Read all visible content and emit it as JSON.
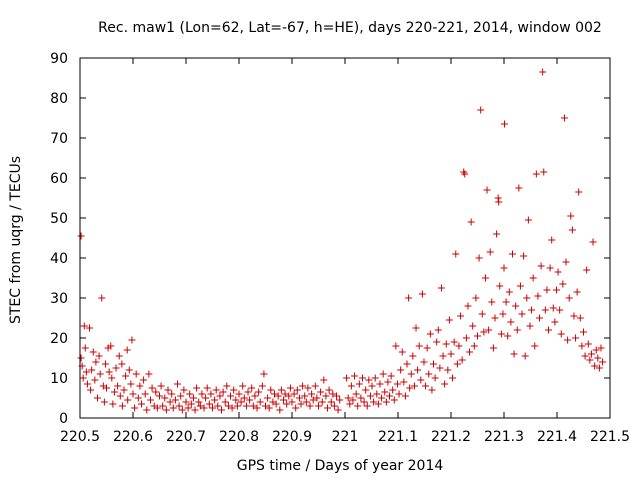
{
  "chart_data": {
    "type": "scatter",
    "title": "Rec. maw1 (Lon=62, Lat=-67, h=HE), days 220-221, 2014, window 002",
    "xlabel": "GPS time / Days of year 2014",
    "ylabel": "STEC from uqrg / TECUs",
    "xlim": [
      220.5,
      221.5
    ],
    "ylim": [
      0,
      90
    ],
    "xticks": [
      220.5,
      220.6,
      220.7,
      220.8,
      220.9,
      221,
      221.1,
      221.2,
      221.3,
      221.4,
      221.5
    ],
    "xtick_labels": [
      "220.5",
      "220.6",
      "220.7",
      "220.8",
      "220.9",
      "221",
      "221.1",
      "221.2",
      "221.3",
      "221.4",
      "221.5"
    ],
    "yticks": [
      0,
      10,
      20,
      30,
      40,
      50,
      60,
      70,
      80,
      90
    ],
    "ytick_labels": [
      "0",
      "10",
      "20",
      "30",
      "40",
      "50",
      "60",
      "70",
      "80",
      "90"
    ],
    "grid": false,
    "marker": "+",
    "color": "#cc0000",
    "points": [
      [
        220.502,
        45.5
      ],
      [
        220.502,
        15.0
      ],
      [
        220.504,
        13.0
      ],
      [
        220.506,
        10.0
      ],
      [
        220.508,
        23.0
      ],
      [
        220.51,
        17.5
      ],
      [
        220.512,
        11.5
      ],
      [
        220.514,
        8.5
      ],
      [
        220.518,
        22.5
      ],
      [
        220.52,
        7.0
      ],
      [
        220.522,
        12.0
      ],
      [
        220.525,
        16.5
      ],
      [
        220.528,
        9.5
      ],
      [
        220.53,
        14.0
      ],
      [
        220.533,
        5.0
      ],
      [
        220.536,
        15.5
      ],
      [
        220.538,
        11.0
      ],
      [
        220.541,
        30.0
      ],
      [
        220.544,
        8.0
      ],
      [
        220.546,
        4.0
      ],
      [
        220.548,
        13.5
      ],
      [
        220.55,
        7.5
      ],
      [
        220.553,
        17.5
      ],
      [
        220.555,
        11.5
      ],
      [
        220.558,
        18.0
      ],
      [
        220.56,
        10.0
      ],
      [
        220.562,
        3.5
      ],
      [
        220.565,
        6.5
      ],
      [
        220.568,
        12.5
      ],
      [
        220.571,
        8.0
      ],
      [
        220.574,
        15.5
      ],
      [
        220.576,
        5.5
      ],
      [
        220.579,
        13.5
      ],
      [
        220.58,
        3.0
      ],
      [
        220.583,
        7.0
      ],
      [
        220.586,
        10.5
      ],
      [
        220.589,
        17.0
      ],
      [
        220.59,
        4.5
      ],
      [
        220.593,
        12.0
      ],
      [
        220.596,
        8.5
      ],
      [
        220.598,
        19.5
      ],
      [
        220.6,
        6.0
      ],
      [
        220.603,
        2.5
      ],
      [
        220.606,
        11.0
      ],
      [
        220.61,
        5.0
      ],
      [
        220.613,
        8.0
      ],
      [
        220.616,
        3.5
      ],
      [
        220.62,
        9.5
      ],
      [
        220.623,
        6.0
      ],
      [
        220.626,
        2.0
      ],
      [
        220.63,
        11.0
      ],
      [
        220.633,
        4.5
      ],
      [
        220.636,
        7.5
      ],
      [
        220.64,
        3.0
      ],
      [
        220.643,
        6.5
      ],
      [
        220.646,
        2.5
      ],
      [
        220.65,
        5.5
      ],
      [
        220.653,
        8.0
      ],
      [
        220.656,
        3.0
      ],
      [
        220.66,
        5.0
      ],
      [
        220.663,
        2.0
      ],
      [
        220.666,
        7.0
      ],
      [
        220.67,
        4.0
      ],
      [
        220.673,
        6.0
      ],
      [
        220.676,
        2.5
      ],
      [
        220.68,
        4.5
      ],
      [
        220.684,
        8.5
      ],
      [
        220.687,
        3.0
      ],
      [
        220.69,
        5.5
      ],
      [
        220.693,
        2.0
      ],
      [
        220.696,
        7.0
      ],
      [
        220.7,
        4.0
      ],
      [
        220.704,
        2.5
      ],
      [
        220.707,
        6.0
      ],
      [
        220.71,
        3.5
      ],
      [
        220.714,
        5.0
      ],
      [
        220.717,
        2.0
      ],
      [
        220.72,
        7.5
      ],
      [
        220.724,
        4.0
      ],
      [
        220.727,
        3.0
      ],
      [
        220.73,
        6.0
      ],
      [
        220.734,
        2.5
      ],
      [
        220.737,
        5.0
      ],
      [
        220.74,
        7.5
      ],
      [
        220.744,
        3.5
      ],
      [
        220.747,
        6.0
      ],
      [
        220.75,
        2.5
      ],
      [
        220.754,
        4.5
      ],
      [
        220.757,
        7.0
      ],
      [
        220.76,
        3.0
      ],
      [
        220.764,
        5.5
      ],
      [
        220.767,
        2.0
      ],
      [
        220.77,
        6.5
      ],
      [
        220.774,
        4.0
      ],
      [
        220.777,
        8.0
      ],
      [
        220.78,
        3.0
      ],
      [
        220.784,
        5.5
      ],
      [
        220.787,
        2.5
      ],
      [
        220.79,
        7.0
      ],
      [
        220.794,
        4.5
      ],
      [
        220.797,
        3.0
      ],
      [
        220.8,
        6.0
      ],
      [
        220.804,
        4.0
      ],
      [
        220.807,
        8.0
      ],
      [
        220.81,
        5.0
      ],
      [
        220.814,
        3.0
      ],
      [
        220.817,
        6.5
      ],
      [
        220.82,
        4.5
      ],
      [
        220.824,
        7.5
      ],
      [
        220.827,
        3.0
      ],
      [
        220.83,
        5.5
      ],
      [
        220.834,
        2.5
      ],
      [
        220.837,
        6.5
      ],
      [
        220.84,
        4.0
      ],
      [
        220.844,
        8.0
      ],
      [
        220.847,
        11.0
      ],
      [
        220.85,
        3.0
      ],
      [
        220.854,
        5.0
      ],
      [
        220.857,
        2.5
      ],
      [
        220.86,
        7.0
      ],
      [
        220.864,
        4.0
      ],
      [
        220.867,
        6.0
      ],
      [
        220.87,
        3.5
      ],
      [
        220.874,
        5.5
      ],
      [
        220.877,
        2.0
      ],
      [
        220.88,
        7.0
      ],
      [
        220.884,
        4.5
      ],
      [
        220.887,
        6.0
      ],
      [
        220.89,
        3.5
      ],
      [
        220.894,
        5.5
      ],
      [
        220.897,
        7.5
      ],
      [
        220.9,
        4.0
      ],
      [
        220.904,
        6.0
      ],
      [
        220.907,
        2.5
      ],
      [
        220.91,
        7.0
      ],
      [
        220.914,
        5.0
      ],
      [
        220.917,
        3.5
      ],
      [
        220.92,
        8.0
      ],
      [
        220.924,
        5.5
      ],
      [
        220.927,
        4.0
      ],
      [
        220.93,
        7.5
      ],
      [
        220.934,
        3.0
      ],
      [
        220.937,
        6.0
      ],
      [
        220.94,
        4.5
      ],
      [
        220.944,
        8.0
      ],
      [
        220.947,
        5.0
      ],
      [
        220.95,
        3.0
      ],
      [
        220.954,
        6.5
      ],
      [
        220.957,
        4.0
      ],
      [
        220.96,
        9.5
      ],
      [
        220.964,
        5.5
      ],
      [
        220.967,
        2.5
      ],
      [
        220.97,
        7.0
      ],
      [
        220.974,
        4.0
      ],
      [
        220.977,
        6.0
      ],
      [
        220.98,
        3.0
      ],
      [
        220.984,
        5.5
      ],
      [
        220.987,
        2.0
      ],
      [
        220.99,
        4.5
      ],
      [
        221.003,
        10.0
      ],
      [
        221.006,
        5.0
      ],
      [
        221.009,
        3.5
      ],
      [
        221.012,
        8.0
      ],
      [
        221.015,
        4.5
      ],
      [
        221.018,
        10.5
      ],
      [
        221.021,
        6.0
      ],
      [
        221.024,
        3.0
      ],
      [
        221.027,
        8.5
      ],
      [
        221.03,
        5.0
      ],
      [
        221.033,
        10.0
      ],
      [
        221.036,
        4.0
      ],
      [
        221.039,
        7.0
      ],
      [
        221.042,
        3.0
      ],
      [
        221.045,
        9.5
      ],
      [
        221.048,
        5.5
      ],
      [
        221.051,
        8.0
      ],
      [
        221.054,
        4.0
      ],
      [
        221.057,
        10.0
      ],
      [
        221.06,
        6.0
      ],
      [
        221.063,
        3.5
      ],
      [
        221.066,
        8.5
      ],
      [
        221.069,
        5.0
      ],
      [
        221.072,
        11.0
      ],
      [
        221.075,
        6.5
      ],
      [
        221.078,
        4.0
      ],
      [
        221.081,
        9.0
      ],
      [
        221.084,
        5.5
      ],
      [
        221.087,
        10.5
      ],
      [
        221.09,
        7.0
      ],
      [
        221.093,
        4.5
      ],
      [
        221.096,
        18.0
      ],
      [
        221.099,
        8.5
      ],
      [
        221.102,
        6.0
      ],
      [
        221.105,
        12.0
      ],
      [
        221.108,
        16.5
      ],
      [
        221.111,
        9.0
      ],
      [
        221.114,
        5.5
      ],
      [
        221.117,
        13.5
      ],
      [
        221.12,
        30.0
      ],
      [
        221.122,
        7.5
      ],
      [
        221.125,
        11.0
      ],
      [
        221.128,
        15.5
      ],
      [
        221.131,
        8.0
      ],
      [
        221.134,
        22.5
      ],
      [
        221.137,
        12.0
      ],
      [
        221.14,
        18.0
      ],
      [
        221.143,
        9.5
      ],
      [
        221.146,
        31.0
      ],
      [
        221.149,
        14.0
      ],
      [
        221.152,
        8.0
      ],
      [
        221.155,
        17.5
      ],
      [
        221.158,
        11.0
      ],
      [
        221.161,
        21.0
      ],
      [
        221.164,
        7.0
      ],
      [
        221.167,
        13.5
      ],
      [
        221.17,
        10.0
      ],
      [
        221.173,
        19.0
      ],
      [
        221.176,
        22.0
      ],
      [
        221.179,
        12.5
      ],
      [
        221.182,
        32.5
      ],
      [
        221.185,
        15.5
      ],
      [
        221.188,
        8.5
      ],
      [
        221.191,
        18.5
      ],
      [
        221.194,
        12.0
      ],
      [
        221.197,
        24.5
      ],
      [
        221.2,
        16.0
      ],
      [
        221.203,
        10.0
      ],
      [
        221.206,
        19.0
      ],
      [
        221.209,
        41.0
      ],
      [
        221.212,
        13.5
      ],
      [
        221.215,
        18.0
      ],
      [
        221.218,
        25.5
      ],
      [
        221.221,
        14.5
      ],
      [
        221.224,
        61.5
      ],
      [
        221.226,
        61.0
      ],
      [
        221.229,
        20.0
      ],
      [
        221.232,
        28.0
      ],
      [
        221.235,
        16.5
      ],
      [
        221.238,
        49.0
      ],
      [
        221.241,
        23.0
      ],
      [
        221.244,
        18.0
      ],
      [
        221.247,
        30.0
      ],
      [
        221.25,
        20.5
      ],
      [
        221.253,
        40.0
      ],
      [
        221.256,
        77.0
      ],
      [
        221.259,
        26.0
      ],
      [
        221.262,
        21.5
      ],
      [
        221.265,
        35.0
      ],
      [
        221.268,
        57.0
      ],
      [
        221.271,
        22.0
      ],
      [
        221.274,
        41.5
      ],
      [
        221.277,
        29.0
      ],
      [
        221.28,
        17.5
      ],
      [
        221.283,
        25.0
      ],
      [
        221.286,
        46.0
      ],
      [
        221.289,
        55.0
      ],
      [
        221.29,
        54.0
      ],
      [
        221.292,
        33.0
      ],
      [
        221.295,
        21.0
      ],
      [
        221.298,
        26.0
      ],
      [
        221.3,
        37.5
      ],
      [
        221.301,
        73.5
      ],
      [
        221.304,
        29.0
      ],
      [
        221.307,
        20.5
      ],
      [
        221.31,
        31.5
      ],
      [
        221.313,
        24.0
      ],
      [
        221.316,
        41.0
      ],
      [
        221.319,
        16.0
      ],
      [
        221.322,
        28.0
      ],
      [
        221.325,
        22.0
      ],
      [
        221.328,
        57.5
      ],
      [
        221.331,
        33.0
      ],
      [
        221.334,
        26.0
      ],
      [
        221.337,
        40.5
      ],
      [
        221.34,
        15.5
      ],
      [
        221.343,
        30.0
      ],
      [
        221.346,
        49.5
      ],
      [
        221.349,
        23.0
      ],
      [
        221.352,
        27.0
      ],
      [
        221.355,
        35.0
      ],
      [
        221.358,
        18.0
      ],
      [
        221.361,
        61.0
      ],
      [
        221.364,
        30.5
      ],
      [
        221.367,
        25.0
      ],
      [
        221.37,
        38.0
      ],
      [
        221.373,
        86.5
      ],
      [
        221.375,
        61.5
      ],
      [
        221.378,
        27.0
      ],
      [
        221.381,
        32.0
      ],
      [
        221.384,
        22.0
      ],
      [
        221.387,
        37.5
      ],
      [
        221.39,
        44.5
      ],
      [
        221.393,
        27.5
      ],
      [
        221.396,
        24.0
      ],
      [
        221.399,
        32.0
      ],
      [
        221.402,
        36.5
      ],
      [
        221.405,
        27.0
      ],
      [
        221.408,
        21.0
      ],
      [
        221.411,
        33.5
      ],
      [
        221.414,
        75.0
      ],
      [
        221.417,
        39.0
      ],
      [
        221.42,
        19.5
      ],
      [
        221.423,
        30.0
      ],
      [
        221.426,
        50.5
      ],
      [
        221.429,
        47.0
      ],
      [
        221.432,
        25.5
      ],
      [
        221.435,
        20.0
      ],
      [
        221.438,
        31.5
      ],
      [
        221.441,
        56.5
      ],
      [
        221.444,
        25.0
      ],
      [
        221.447,
        18.0
      ],
      [
        221.45,
        21.5
      ],
      [
        221.453,
        15.5
      ],
      [
        221.456,
        37.0
      ],
      [
        221.459,
        18.5
      ],
      [
        221.462,
        14.5
      ],
      [
        221.465,
        16.0
      ],
      [
        221.468,
        44.0
      ],
      [
        221.471,
        13.0
      ],
      [
        221.474,
        17.0
      ],
      [
        221.477,
        15.0
      ],
      [
        221.48,
        12.5
      ],
      [
        221.483,
        17.5
      ],
      [
        221.486,
        14.0
      ]
    ]
  }
}
